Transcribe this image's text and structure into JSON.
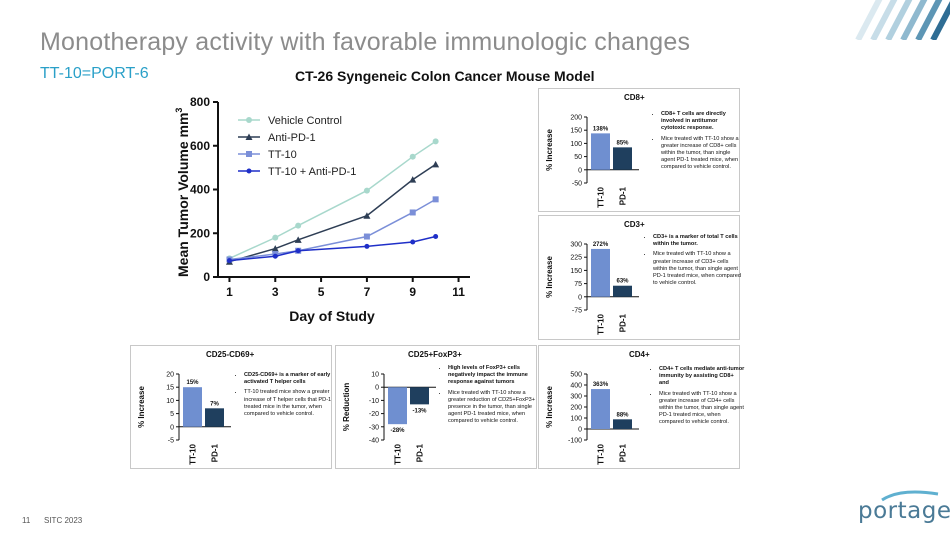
{
  "slide": {
    "title": "Monotherapy activity with favorable immunologic changes",
    "subtitle": "TT-10=PORT-6",
    "page_number": "11",
    "conference": "SITC 2023",
    "logo_text": "portage",
    "colors": {
      "title": "#8c8c8c",
      "subtitle": "#2aa0c8",
      "bar_tt10": "#6f8fd0",
      "bar_pd1": "#1f3f5e",
      "logo": "#4a7a96"
    }
  },
  "main_chart": {
    "title": "CT-26 Syngeneic Colon Cancer Mouse Model",
    "ylabel": "Mean Tumor Volume mm",
    "ylabel_sup": "3"
  },
  "panels": {
    "cd8": {
      "notes": [
        "CD8+ T cells are directly involved in antitumor cytotoxic response.",
        "Mice treated with TT-10 show a greater increase of CD8+ cells within the tumor, than single agent PD-1 treated mice, when compared to vehicle control."
      ]
    },
    "cd3": {
      "notes": [
        "CD3+ is a marker of total T cells within the tumor.",
        "Mice treated with TT-10 show a greater increase of CD3+ cells within the tumor, than single agent PD-1 treated mice, when compared to vehicle control."
      ]
    },
    "cd25cd69": {
      "notes": [
        "CD25-CD69+ is a marker of early activated T helper cells",
        "TT-10 treated mice show a greater increase of T helper cells that PD-1 treated mice in the tumor, when compared to vehicle control."
      ]
    },
    "foxp3": {
      "notes": [
        "High levels of FoxP3+ cells negatively impact the immune response against tumors",
        "Mice treated with TT-10 show a greater reduction of CD25+FoxP3+ presence in the tumor, than single agent PD-1 treated mice, when compared to vehicle control."
      ]
    },
    "cd4": {
      "notes": [
        "CD4+ T cells mediate anti-tumor immunity by assisting CD8+ and",
        "Mice treated with TT-10 show a greater increase of CD4+ cells within the tumor, than single agent PD-1 treated mice, when compared to vehicle control."
      ]
    }
  },
  "chart_data": [
    {
      "id": "tumor",
      "type": "line",
      "title": "CT-26 Syngeneic Colon Cancer Mouse Model",
      "xlabel": "Day of Study",
      "ylabel": "Mean Tumor Volume mm3",
      "xlim": [
        0.5,
        11.5
      ],
      "ylim": [
        0,
        800
      ],
      "xticks": [
        1,
        3,
        5,
        7,
        9,
        11
      ],
      "yticks": [
        0,
        200,
        400,
        600,
        800
      ],
      "legend": "top-left",
      "series": [
        {
          "name": "Vehicle Control",
          "color": "#a8d8cc",
          "marker": "circle",
          "x": [
            1,
            3,
            4,
            7,
            9,
            10
          ],
          "y": [
            85,
            180,
            235,
            395,
            550,
            620
          ]
        },
        {
          "name": "Anti-PD-1",
          "color": "#2e3e55",
          "marker": "triangle",
          "x": [
            1,
            3,
            4,
            7,
            9,
            10
          ],
          "y": [
            70,
            130,
            170,
            280,
            445,
            515
          ]
        },
        {
          "name": "TT-10",
          "color": "#7b8fd8",
          "marker": "square",
          "x": [
            1,
            3,
            4,
            7,
            9,
            10
          ],
          "y": [
            80,
            105,
            120,
            185,
            295,
            355
          ]
        },
        {
          "name": "TT-10 + Anti-PD-1",
          "color": "#1f2fc8",
          "marker": "dot",
          "x": [
            1,
            3,
            4,
            7,
            9,
            10
          ],
          "y": [
            75,
            95,
            120,
            140,
            160,
            185
          ]
        }
      ]
    },
    {
      "id": "cd8",
      "type": "bar",
      "title": "CD8+",
      "ylabel": "% Increase",
      "categories": [
        "TT-10",
        "PD-1"
      ],
      "values": [
        138,
        85
      ],
      "labels": [
        "138%",
        "85%"
      ],
      "ylim": [
        -50,
        200
      ],
      "yticks": [
        -50,
        0,
        50,
        100,
        150,
        200
      ]
    },
    {
      "id": "cd3",
      "type": "bar",
      "title": "CD3+",
      "ylabel": "% Increase",
      "categories": [
        "TT-10",
        "PD-1"
      ],
      "values": [
        272,
        63
      ],
      "labels": [
        "272%",
        "63%"
      ],
      "ylim": [
        -75,
        300
      ],
      "yticks": [
        -75,
        0,
        75,
        150,
        225,
        300
      ]
    },
    {
      "id": "cd25cd69",
      "type": "bar",
      "title": "CD25-CD69+",
      "ylabel": "% Increase",
      "categories": [
        "TT-10",
        "PD-1"
      ],
      "values": [
        15,
        7
      ],
      "labels": [
        "15%",
        "7%"
      ],
      "ylim": [
        -5,
        20
      ],
      "yticks": [
        -5,
        0,
        5,
        10,
        15,
        20
      ]
    },
    {
      "id": "foxp3",
      "type": "bar",
      "title": "CD25+FoxP3+",
      "ylabel": "% Reduction",
      "categories": [
        "TT-10",
        "PD-1"
      ],
      "values": [
        -28,
        -13
      ],
      "labels": [
        "-28%",
        "-13%"
      ],
      "ylim": [
        -40,
        10
      ],
      "yticks": [
        -40,
        -30,
        -20,
        -10,
        0,
        10
      ]
    },
    {
      "id": "cd4",
      "type": "bar",
      "title": "CD4+",
      "ylabel": "% Increase",
      "categories": [
        "TT-10",
        "PD-1"
      ],
      "values": [
        363,
        88
      ],
      "labels": [
        "363%",
        "88%"
      ],
      "ylim": [
        -100,
        500
      ],
      "yticks": [
        -100,
        0,
        100,
        200,
        300,
        400,
        500
      ]
    }
  ]
}
